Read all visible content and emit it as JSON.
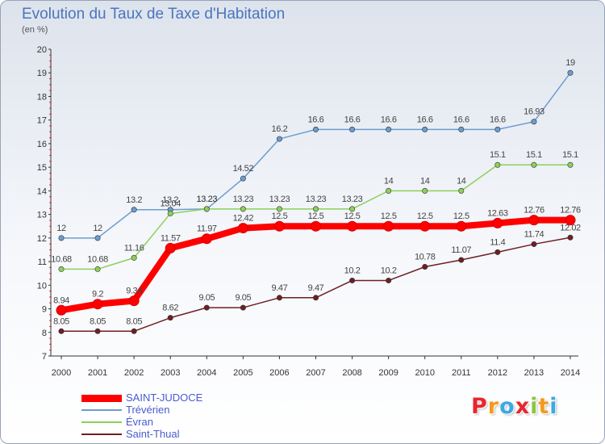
{
  "title": "Evolution du Taux de Taxe d'Habitation",
  "subtitle": "(en %)",
  "logo": {
    "text": "Proxiti",
    "colors": [
      "#e8262e",
      "#f39a1e",
      "#3da9e0",
      "#e8262e",
      "#8dc63f",
      "#f39a1e",
      "#3da9e0"
    ]
  },
  "chart_data": {
    "type": "line",
    "title": "Evolution du Taux de Taxe d'Habitation",
    "ylabel": "(en %)",
    "xlabel": "",
    "x": [
      "2000",
      "2001",
      "2002",
      "2003",
      "2004",
      "2005",
      "2006",
      "2007",
      "2008",
      "2009",
      "2010",
      "2011",
      "2012",
      "2013",
      "2014"
    ],
    "ylim": [
      7,
      20
    ],
    "yticks": [
      7,
      8,
      9,
      10,
      11,
      12,
      13,
      14,
      15,
      16,
      17,
      18,
      19,
      20
    ],
    "grid": false,
    "legend": "bottom-left",
    "series": [
      {
        "name": "SAINT-JUDOCE",
        "color": "#ff0000",
        "values": [
          8.94,
          9.2,
          9.34,
          11.57,
          11.97,
          12.42,
          12.5,
          12.5,
          12.5,
          12.5,
          12.5,
          12.5,
          12.63,
          12.76,
          12.76
        ],
        "labels": [
          "8.94",
          "9.2",
          "9.34",
          "11.57",
          "11.97",
          "12.42",
          "12.5",
          "12.5",
          "12.5",
          "12.5",
          "12.5",
          "12.5",
          "12.63",
          "12.76",
          "12.76"
        ]
      },
      {
        "name": "Trévérien",
        "color": "#6c9dcf",
        "values": [
          12,
          12,
          13.2,
          13.2,
          13.23,
          14.52,
          16.2,
          16.6,
          16.6,
          16.6,
          16.6,
          16.6,
          16.6,
          16.93,
          19
        ],
        "labels": [
          "12",
          "12",
          "13.2",
          "13.2",
          "13.23",
          "14.52",
          "16.2",
          "16.6",
          "16.6",
          "16.6",
          "16.6",
          "16.6",
          "16.6",
          "16.93",
          "19"
        ]
      },
      {
        "name": "Évran",
        "color": "#8dd05a",
        "values": [
          10.68,
          10.68,
          11.16,
          13.04,
          13.23,
          13.23,
          13.23,
          13.23,
          13.23,
          14,
          14,
          14,
          15.1,
          15.1,
          15.1
        ],
        "labels": [
          "10.68",
          "10.68",
          "11.16",
          "13.04",
          "13.23",
          "13.23",
          "13.23",
          "13.23",
          "13.23",
          "14",
          "14",
          "14",
          "15.1",
          "15.1",
          "15.1"
        ]
      },
      {
        "name": "Saint-Thual",
        "color": "#6e1f24",
        "values": [
          8.05,
          8.05,
          8.05,
          8.62,
          9.05,
          9.05,
          9.47,
          9.47,
          10.2,
          10.2,
          10.78,
          11.07,
          11.4,
          11.74,
          12.02
        ],
        "labels": [
          "8.05",
          "8.05",
          "8.05",
          "8.62",
          "9.05",
          "9.05",
          "9.47",
          "9.47",
          "10.2",
          "10.2",
          "10.78",
          "11.07",
          "11.4",
          "11.74",
          "12.02"
        ]
      }
    ]
  }
}
